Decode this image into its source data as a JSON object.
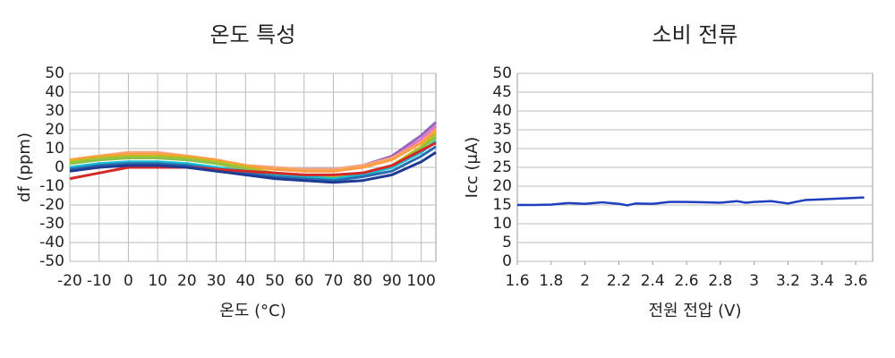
{
  "chart_data": [
    {
      "type": "line",
      "title": "온도 특성",
      "xlabel": "온도 (°C)",
      "ylabel": "df (ppm)",
      "x": [
        -20,
        -10,
        0,
        10,
        20,
        30,
        40,
        50,
        60,
        70,
        80,
        90,
        100,
        105
      ],
      "series": [
        {
          "color": "#9467bd",
          "values": [
            3,
            5,
            6,
            6,
            5,
            3,
            1,
            -1,
            -1,
            -1,
            1,
            6,
            17,
            24
          ]
        },
        {
          "color": "#e377c2",
          "values": [
            2,
            4,
            5,
            5,
            4,
            3,
            1,
            -1,
            -2,
            -2,
            0,
            5,
            15,
            22
          ]
        },
        {
          "color": "#f4a582",
          "values": [
            4,
            6,
            8,
            8,
            6,
            4,
            1,
            0,
            -1,
            -1,
            1,
            5,
            13,
            19
          ]
        },
        {
          "color": "#ff9f40",
          "values": [
            4,
            6,
            7,
            7,
            6,
            4,
            1,
            -1,
            -2,
            -2,
            0,
            4,
            13,
            20
          ]
        },
        {
          "color": "#bcbd22",
          "values": [
            3,
            5,
            6,
            6,
            5,
            3,
            0,
            -3,
            -5,
            -5,
            -3,
            1,
            11,
            18
          ]
        },
        {
          "color": "#8bc34a",
          "values": [
            2,
            4,
            5,
            5,
            4,
            2,
            -1,
            -4,
            -6,
            -6,
            -4,
            0,
            10,
            16
          ]
        },
        {
          "color": "#17becf",
          "values": [
            0,
            2,
            3,
            3,
            2,
            0,
            -2,
            -4,
            -5,
            -6,
            -4,
            0,
            8,
            14
          ]
        },
        {
          "color": "#2b6cb0",
          "values": [
            -1,
            1,
            2,
            2,
            1,
            -1,
            -3,
            -5,
            -6,
            -7,
            -5,
            -2,
            6,
            11
          ]
        },
        {
          "color": "#d62728",
          "values": [
            -6,
            -3,
            0,
            0,
            0,
            -1,
            -2,
            -3,
            -4,
            -4,
            -3,
            1,
            9,
            13
          ]
        },
        {
          "color": "#1f3a93",
          "values": [
            -2,
            0,
            1,
            1,
            0,
            -2,
            -4,
            -6,
            -7,
            -8,
            -7,
            -4,
            3,
            8
          ]
        }
      ],
      "xlim": [
        -20,
        105
      ],
      "ylim": [
        -50,
        50
      ],
      "xticks": [
        -20,
        -10,
        0,
        10,
        20,
        30,
        40,
        50,
        60,
        70,
        80,
        90,
        100
      ],
      "yticks": [
        -50,
        -40,
        -30,
        -20,
        -10,
        0,
        10,
        20,
        30,
        40,
        50
      ],
      "grid": "both"
    },
    {
      "type": "line",
      "title": "소비 전류",
      "xlabel": "전원 전압 (V)",
      "ylabel": "Icc (μA)",
      "x": [
        1.6,
        1.7,
        1.8,
        1.9,
        2.0,
        2.1,
        2.2,
        2.25,
        2.3,
        2.4,
        2.5,
        2.6,
        2.7,
        2.8,
        2.9,
        2.95,
        3.0,
        3.1,
        3.2,
        3.3,
        3.4,
        3.5,
        3.65
      ],
      "series": [
        {
          "color": "#1f3fbf",
          "values": [
            15,
            15,
            15.1,
            15.5,
            15.3,
            15.7,
            15.3,
            14.9,
            15.4,
            15.3,
            15.8,
            15.8,
            15.7,
            15.6,
            16,
            15.6,
            15.8,
            16,
            15.4,
            16.3,
            16.5,
            16.7,
            17
          ]
        }
      ],
      "xlim": [
        1.6,
        3.7
      ],
      "ylim": [
        0,
        50
      ],
      "xticks": [
        1.6,
        1.8,
        2,
        2.2,
        2.4,
        2.6,
        2.8,
        3,
        3.2,
        3.4,
        3.6
      ],
      "yticks": [
        0,
        5,
        10,
        15,
        20,
        25,
        30,
        35,
        40,
        45,
        50
      ],
      "grid": "y"
    }
  ]
}
